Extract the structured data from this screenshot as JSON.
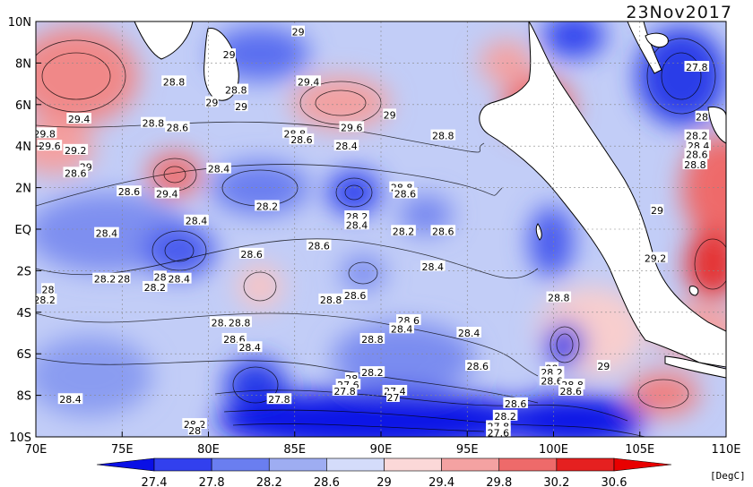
{
  "date": "23Nov2017",
  "unit": "[DegC]",
  "lat_labels": [
    "10N",
    "8N",
    "6N",
    "4N",
    "2N",
    "EQ",
    "2S",
    "4S",
    "6S",
    "8S",
    "10S"
  ],
  "lon_labels": [
    "70E",
    "75E",
    "80E",
    "85E",
    "90E",
    "95E",
    "100E",
    "105E",
    "110E"
  ],
  "colorbar": {
    "ticks": [
      "27.4",
      "27.8",
      "28.2",
      "28.6",
      "29",
      "29.4",
      "29.8",
      "30.2",
      "30.6"
    ],
    "colors": [
      "#0a10e6",
      "#3240ee",
      "#6a7ef0",
      "#9eadf2",
      "#d4dcfa",
      "#fbd8d8",
      "#f4a2a2",
      "#ee6a6a",
      "#e52020",
      "#e80000"
    ]
  },
  "contour_labels": [
    {
      "text": "29",
      "lon": 80.2,
      "lat": 6.1
    },
    {
      "text": "28.8",
      "lon": 78.0,
      "lat": 7.1
    },
    {
      "text": "28.8",
      "lon": 81.6,
      "lat": 6.7
    },
    {
      "text": "29",
      "lon": 81.9,
      "lat": 5.9
    },
    {
      "text": "29",
      "lon": 85.2,
      "lat": 9.5
    },
    {
      "text": "29",
      "lon": 81.2,
      "lat": 8.4
    },
    {
      "text": "29.4",
      "lon": 85.8,
      "lat": 7.1
    },
    {
      "text": "29.6",
      "lon": 88.3,
      "lat": 4.9
    },
    {
      "text": "29",
      "lon": 90.5,
      "lat": 5.5
    },
    {
      "text": "28.8",
      "lon": 85.0,
      "lat": 4.6
    },
    {
      "text": "28.6",
      "lon": 85.4,
      "lat": 4.3
    },
    {
      "text": "28.4",
      "lon": 88.0,
      "lat": 4.0
    },
    {
      "text": "28.8",
      "lon": 93.6,
      "lat": 4.5
    },
    {
      "text": "29.4",
      "lon": 72.5,
      "lat": 5.3
    },
    {
      "text": "28.8",
      "lon": 76.8,
      "lat": 5.1
    },
    {
      "text": "28.6",
      "lon": 78.2,
      "lat": 4.9
    },
    {
      "text": "29.8",
      "lon": 70.5,
      "lat": 4.6
    },
    {
      "text": "29.6",
      "lon": 70.8,
      "lat": 4.0
    },
    {
      "text": "29.2",
      "lon": 72.3,
      "lat": 3.8
    },
    {
      "text": "29",
      "lon": 72.9,
      "lat": 3.0
    },
    {
      "text": "28.6",
      "lon": 72.3,
      "lat": 2.7
    },
    {
      "text": "28.6",
      "lon": 75.4,
      "lat": 1.8
    },
    {
      "text": "29.4",
      "lon": 77.6,
      "lat": 1.7
    },
    {
      "text": "28.4",
      "lon": 80.6,
      "lat": 2.9
    },
    {
      "text": "28.2",
      "lon": 83.4,
      "lat": 1.1
    },
    {
      "text": "28.8",
      "lon": 91.2,
      "lat": 2.0
    },
    {
      "text": "28.6",
      "lon": 91.4,
      "lat": 1.7
    },
    {
      "text": "28.4",
      "lon": 79.3,
      "lat": 0.4
    },
    {
      "text": "28.2",
      "lon": 88.6,
      "lat": 0.6
    },
    {
      "text": "28.4",
      "lon": 88.6,
      "lat": 0.2
    },
    {
      "text": "28.4",
      "lon": 74.1,
      "lat": -0.2
    },
    {
      "text": "28.2",
      "lon": 91.3,
      "lat": -0.1
    },
    {
      "text": "28.6",
      "lon": 93.6,
      "lat": -0.1
    },
    {
      "text": "28.6",
      "lon": 82.5,
      "lat": -1.2
    },
    {
      "text": "28.6",
      "lon": 86.4,
      "lat": -0.8
    },
    {
      "text": "28.4",
      "lon": 93.0,
      "lat": -1.8
    },
    {
      "text": "28.2",
      "lon": 74.0,
      "lat": -2.4
    },
    {
      "text": "28",
      "lon": 75.1,
      "lat": -2.4
    },
    {
      "text": "28",
      "lon": 77.2,
      "lat": -2.3
    },
    {
      "text": "28.4",
      "lon": 78.3,
      "lat": -2.4
    },
    {
      "text": "28.2",
      "lon": 76.9,
      "lat": -2.8
    },
    {
      "text": "28",
      "lon": 70.7,
      "lat": -2.9
    },
    {
      "text": "28.2",
      "lon": 70.5,
      "lat": -3.4
    },
    {
      "text": "28.8",
      "lon": 87.1,
      "lat": -3.4
    },
    {
      "text": "28.6",
      "lon": 88.5,
      "lat": -3.2
    },
    {
      "text": "28.6",
      "lon": 80.8,
      "lat": -4.5
    },
    {
      "text": "28.8",
      "lon": 81.8,
      "lat": -4.5
    },
    {
      "text": "28.6",
      "lon": 81.5,
      "lat": -5.3
    },
    {
      "text": "28.4",
      "lon": 82.4,
      "lat": -5.7
    },
    {
      "text": "28.6",
      "lon": 91.6,
      "lat": -4.4
    },
    {
      "text": "28.4",
      "lon": 91.2,
      "lat": -4.8
    },
    {
      "text": "28.8",
      "lon": 89.5,
      "lat": -5.3
    },
    {
      "text": "28.4",
      "lon": 95.1,
      "lat": -5.0
    },
    {
      "text": "28.6",
      "lon": 95.6,
      "lat": -6.6
    },
    {
      "text": "28",
      "lon": 88.3,
      "lat": -7.2
    },
    {
      "text": "28.2",
      "lon": 89.5,
      "lat": -6.9
    },
    {
      "text": "27.6",
      "lon": 88.1,
      "lat": -7.5
    },
    {
      "text": "27.8",
      "lon": 87.9,
      "lat": -7.8
    },
    {
      "text": "27.8",
      "lon": 84.1,
      "lat": -8.2
    },
    {
      "text": "27.4",
      "lon": 90.8,
      "lat": -7.8
    },
    {
      "text": "27",
      "lon": 90.7,
      "lat": -8.1
    },
    {
      "text": "28.4",
      "lon": 72.0,
      "lat": -8.2
    },
    {
      "text": "28.2",
      "lon": 79.2,
      "lat": -9.4
    },
    {
      "text": "28",
      "lon": 79.2,
      "lat": -9.7
    },
    {
      "text": "28.6",
      "lon": 97.8,
      "lat": -8.4
    },
    {
      "text": "28.2",
      "lon": 97.2,
      "lat": -9.0
    },
    {
      "text": "27.8",
      "lon": 96.8,
      "lat": -9.5
    },
    {
      "text": "27.6",
      "lon": 96.8,
      "lat": -9.8
    },
    {
      "text": "28",
      "lon": 99.9,
      "lat": -6.7
    },
    {
      "text": "28.2",
      "lon": 99.9,
      "lat": -6.9
    },
    {
      "text": "28.6",
      "lon": 99.9,
      "lat": -7.3
    },
    {
      "text": "28.8",
      "lon": 101.1,
      "lat": -7.5
    },
    {
      "text": "28.6",
      "lon": 101.0,
      "lat": -7.8
    },
    {
      "text": "29",
      "lon": 102.9,
      "lat": -6.6
    },
    {
      "text": "28.8",
      "lon": 100.3,
      "lat": -3.3
    },
    {
      "text": "29.2",
      "lon": 105.9,
      "lat": -1.4
    },
    {
      "text": "29",
      "lon": 106.0,
      "lat": 0.9
    },
    {
      "text": "27.8",
      "lon": 108.3,
      "lat": 7.8
    },
    {
      "text": "28",
      "lon": 108.6,
      "lat": 5.4
    },
    {
      "text": "28.2",
      "lon": 108.3,
      "lat": 4.5
    },
    {
      "text": "28.4",
      "lon": 108.4,
      "lat": 4.0
    },
    {
      "text": "28.6",
      "lon": 108.3,
      "lat": 3.6
    },
    {
      "text": "28.8",
      "lon": 108.2,
      "lat": 3.1
    }
  ]
}
